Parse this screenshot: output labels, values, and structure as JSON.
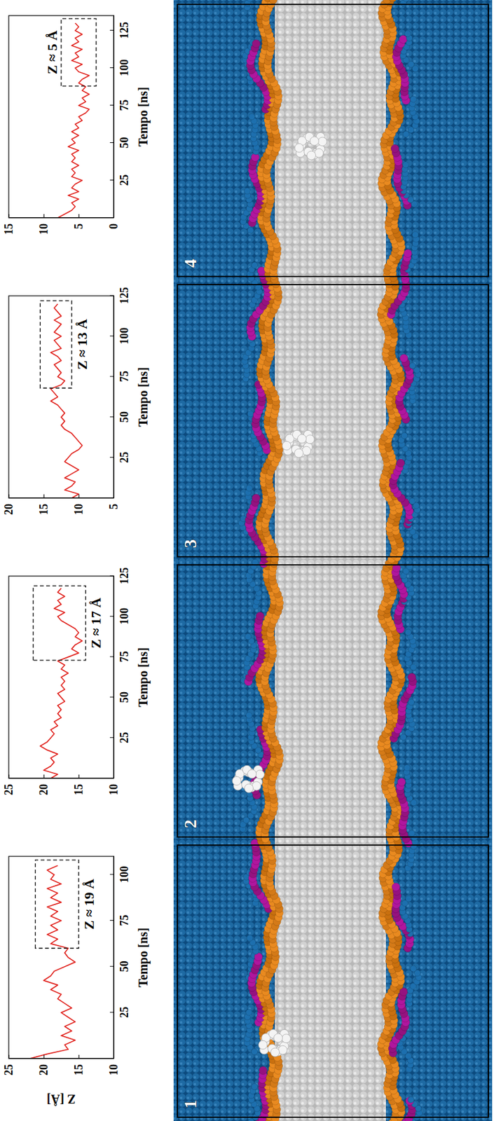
{
  "chart_data": [
    {
      "type": "line",
      "x_label": "Tempo [ns]",
      "y_label": "Z [Å]",
      "color": "#e0201b",
      "xlim": [
        0,
        110
      ],
      "ylim": [
        10,
        25
      ],
      "xticks": [
        25,
        50,
        75,
        100
      ],
      "yticks": [
        10,
        15,
        20,
        25
      ],
      "x": [
        0,
        2.5,
        5,
        7.5,
        10,
        12.5,
        15,
        17.5,
        20,
        22.5,
        25,
        27.5,
        30,
        32.5,
        35,
        37.5,
        40,
        42.5,
        45,
        47.5,
        50,
        52.5,
        55,
        57.5,
        60,
        62.5,
        65,
        67.5,
        70,
        72.5,
        75,
        77.5,
        80,
        82.5,
        85,
        87.5,
        90,
        92.5,
        95,
        97.5,
        100,
        102.5,
        105
      ],
      "values": [
        22,
        19.5,
        16.5,
        17,
        15.5,
        17.5,
        16,
        17,
        15.5,
        16.5,
        17.5,
        16,
        17,
        18,
        17.5,
        19,
        18,
        20,
        19,
        18.5,
        17,
        15.5,
        16.5,
        17,
        16.5,
        19,
        18,
        19.5,
        18,
        19,
        17.5,
        19,
        18,
        19.5,
        17.5,
        19,
        18,
        19.5,
        17.5,
        19,
        18.5,
        19.5,
        18
      ],
      "annotations": [
        {
          "text": "Z ≈ 19 Å",
          "x": [
            60,
            108
          ],
          "y": [
            15,
            21.2
          ]
        }
      ]
    },
    {
      "type": "line",
      "x_label": "Tempo [ns]",
      "color": "#e0201b",
      "xlim": [
        0,
        125
      ],
      "ylim": [
        10,
        25
      ],
      "xticks": [
        25,
        50,
        75,
        100,
        125
      ],
      "yticks": [
        10,
        15,
        20,
        25
      ],
      "x": [
        0,
        2.5,
        5,
        7.5,
        10,
        12.5,
        15,
        17.5,
        20,
        22.5,
        25,
        27.5,
        30,
        32.5,
        35,
        37.5,
        40,
        42.5,
        45,
        47.5,
        50,
        52.5,
        55,
        57.5,
        60,
        62.5,
        65,
        67.5,
        70,
        72.5,
        75,
        77.5,
        80,
        82.5,
        85,
        87.5,
        90,
        92.5,
        95,
        97.5,
        100,
        102.5,
        105,
        107.5,
        110,
        112.5,
        115,
        117.5
      ],
      "values": [
        19,
        18,
        20,
        19,
        18.5,
        19,
        18,
        19.5,
        20.5,
        19.5,
        19,
        18.5,
        19,
        18,
        18.5,
        17.5,
        18,
        17.5,
        18,
        17,
        17.5,
        18,
        17,
        17.5,
        17,
        17.5,
        16.5,
        17.5,
        17,
        18,
        16.5,
        15,
        16,
        15.5,
        14.5,
        15.5,
        15,
        15.5,
        16.5,
        17.5,
        18,
        17,
        18.5,
        17.5,
        18,
        17,
        18,
        17.5
      ],
      "annotations": [
        {
          "text": "Z ≈ 17 Å",
          "x": [
            73,
            119
          ],
          "y": [
            14,
            21.5
          ]
        }
      ]
    },
    {
      "type": "line",
      "x_label": "Tempo [ns]",
      "color": "#e0201b",
      "xlim": [
        0,
        125
      ],
      "ylim": [
        5,
        20
      ],
      "xticks": [
        25,
        50,
        75,
        100,
        125
      ],
      "yticks": [
        5,
        10,
        15,
        20
      ],
      "x": [
        0,
        2.5,
        5,
        7.5,
        10,
        12.5,
        15,
        17.5,
        20,
        22.5,
        25,
        27.5,
        30,
        32.5,
        35,
        37.5,
        40,
        42.5,
        45,
        47.5,
        50,
        52.5,
        55,
        57.5,
        60,
        62.5,
        65,
        67.5,
        70,
        72.5,
        75,
        77.5,
        80,
        82.5,
        85,
        87.5,
        90,
        92.5,
        95,
        97.5,
        100,
        102.5,
        105,
        107.5,
        110,
        112.5,
        115,
        117.5,
        120
      ],
      "values": [
        11,
        10,
        12,
        11,
        10.5,
        12,
        11,
        10,
        11,
        12,
        11.5,
        11,
        10,
        9.5,
        10,
        10.5,
        11,
        12,
        12.5,
        12,
        12.5,
        12,
        12.5,
        13,
        14,
        13,
        13.5,
        14,
        12.5,
        12,
        13,
        12.5,
        13,
        13.5,
        12.5,
        13,
        14,
        12.5,
        13,
        13.5,
        12.5,
        13.5,
        13,
        12.5,
        13.5,
        12.5,
        13,
        13.5,
        13
      ],
      "annotations": [
        {
          "text": "Z ≈ 13 Å",
          "x": [
            68,
            122
          ],
          "y": [
            11,
            15.5
          ]
        }
      ]
    },
    {
      "type": "line",
      "x_label": "Tempo [ns]",
      "color": "#e0201b",
      "xlim": [
        0,
        135
      ],
      "ylim": [
        0,
        15
      ],
      "xticks": [
        25,
        50,
        75,
        100,
        125
      ],
      "yticks": [
        0,
        5,
        10,
        15
      ],
      "x": [
        0,
        2.5,
        5,
        7.5,
        10,
        12.5,
        15,
        17.5,
        20,
        22.5,
        25,
        27.5,
        30,
        32.5,
        35,
        37.5,
        40,
        42.5,
        45,
        47.5,
        50,
        52.5,
        55,
        57.5,
        60,
        62.5,
        65,
        67.5,
        70,
        72.5,
        75,
        77.5,
        80,
        82.5,
        85,
        87.5,
        90,
        92.5,
        95,
        97.5,
        100,
        102.5,
        105,
        107.5,
        110,
        112.5,
        115,
        117.5,
        120,
        122.5,
        125,
        127.5,
        130
      ],
      "values": [
        8,
        7,
        6,
        5.5,
        6,
        5,
        6.5,
        5,
        6,
        5.5,
        4.5,
        6,
        5.5,
        6,
        5,
        6,
        5.5,
        6,
        5,
        6.5,
        5.5,
        6,
        5,
        6,
        5,
        5.5,
        4.5,
        5,
        4,
        3.5,
        5,
        4,
        4.5,
        3.5,
        4.5,
        4,
        5,
        4.5,
        3.5,
        5,
        5.5,
        4.5,
        6,
        5,
        5.5,
        4.5,
        6,
        5,
        5.5,
        4.5,
        5.5,
        5,
        5.5
      ],
      "annotations": [
        {
          "text": "Z ≈ 5 Å",
          "x": [
            88,
            133
          ],
          "y": [
            2.5,
            7.5
          ]
        }
      ]
    }
  ],
  "snapshot": {
    "panels": [
      "1",
      "2",
      "3",
      "4"
    ]
  }
}
